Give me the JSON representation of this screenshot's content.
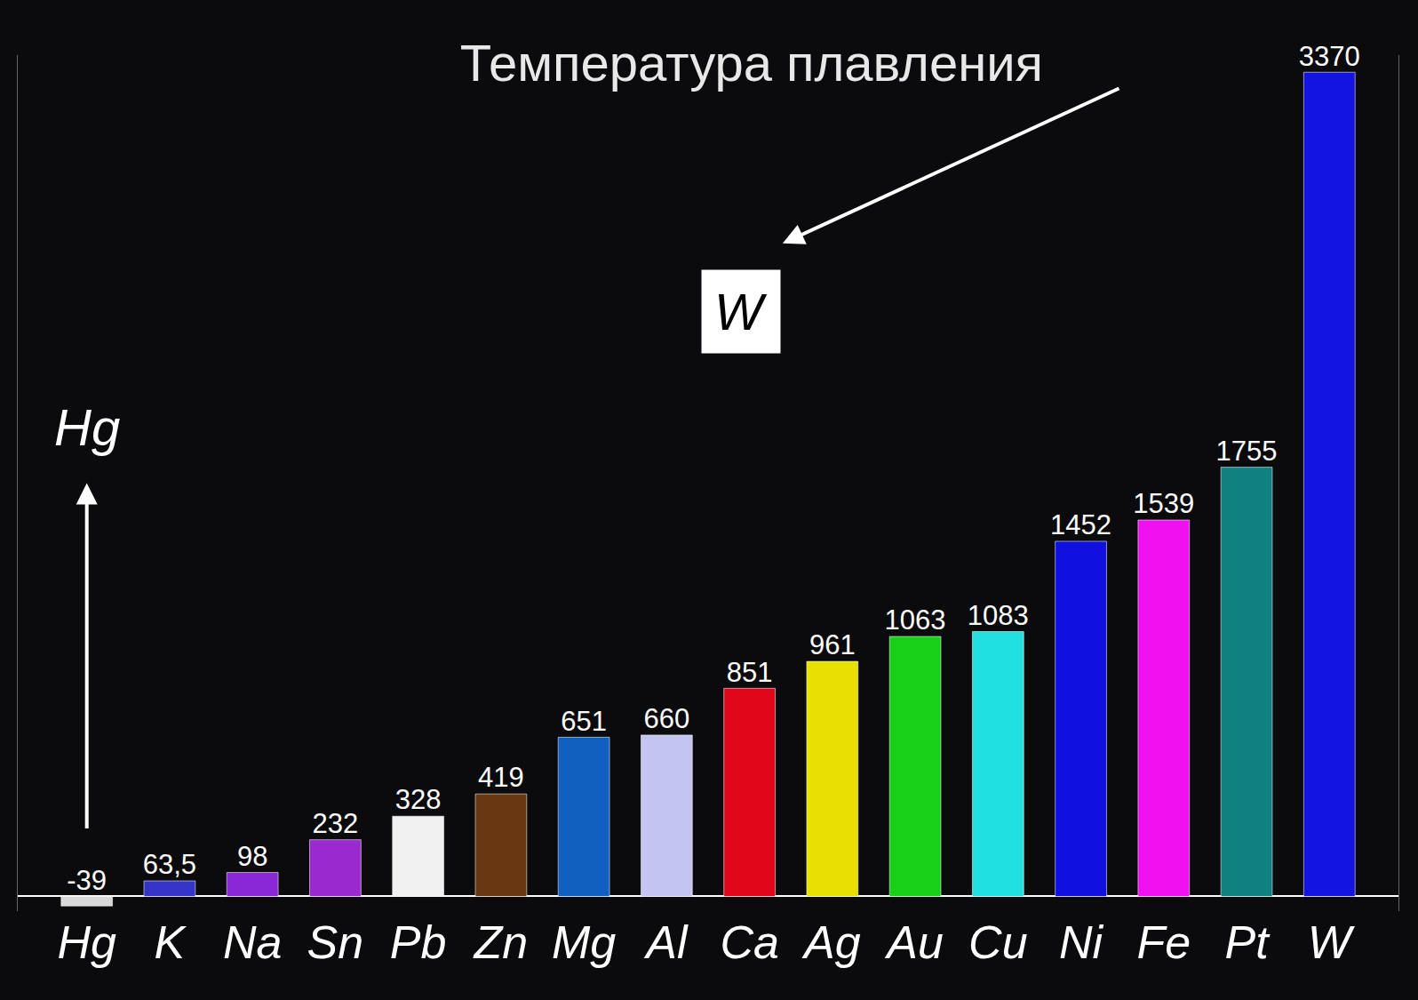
{
  "chart_data": {
    "type": "bar",
    "title": "Температура плавления",
    "categories": [
      "Hg",
      "K",
      "Na",
      "Sn",
      "Pb",
      "Zn",
      "Mg",
      "Al",
      "Ca",
      "Ag",
      "Au",
      "Cu",
      "Ni",
      "Fe",
      "Pt",
      "W"
    ],
    "values": [
      -39,
      63.5,
      98,
      232,
      328,
      419,
      651,
      660,
      851,
      961,
      1063,
      1083,
      1452,
      1539,
      1755,
      3370
    ],
    "value_labels": [
      "-39",
      "63,5",
      "98",
      "232",
      "328",
      "419",
      "651",
      "660",
      "851",
      "961",
      "1063",
      "1083",
      "1452",
      "1539",
      "1755",
      "3370"
    ],
    "colors": [
      "#d8d8d8",
      "#3434c8",
      "#8a28d8",
      "#9a2ad0",
      "#f0f0f0",
      "#6a3810",
      "#1060c0",
      "#c4c4f2",
      "#e00818",
      "#e8e000",
      "#18d018",
      "#20e0e0",
      "#1010e0",
      "#f010f0",
      "#108080",
      "#1414e0"
    ],
    "data_labels": true,
    "ylim": [
      -60,
      3440
    ],
    "tick_labels": "x",
    "annotations": [
      {
        "text": "Hg",
        "category": "Hg"
      },
      {
        "text": "W",
        "category": "W"
      }
    ]
  }
}
